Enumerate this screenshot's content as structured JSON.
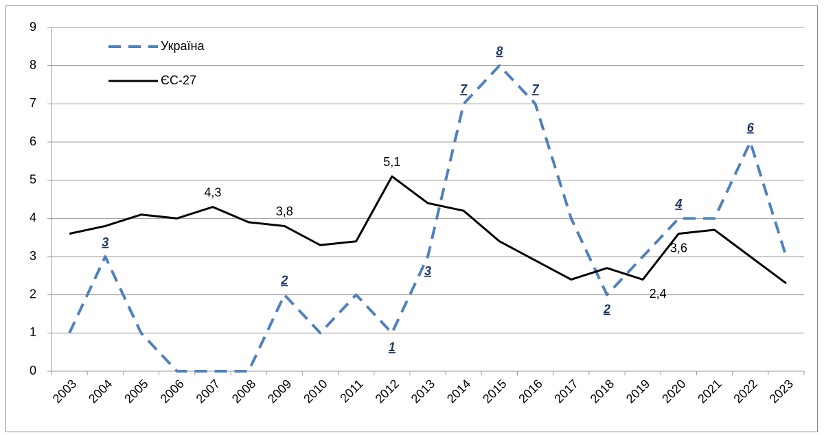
{
  "chart_data": {
    "type": "line",
    "categories": [
      "2003",
      "2004",
      "2005",
      "2006",
      "2007",
      "2008",
      "2009",
      "2010",
      "2011",
      "2012",
      "2013",
      "2014",
      "2015",
      "2016",
      "2017",
      "2018",
      "2019",
      "2020",
      "2021",
      "2022",
      "2023"
    ],
    "series": [
      {
        "name": "Україна",
        "color": "#4f81bd",
        "dashed": true,
        "values": [
          1,
          3,
          1,
          0,
          0,
          0,
          2,
          1,
          2,
          1,
          3,
          7,
          8,
          7,
          4,
          2,
          3,
          4,
          4,
          6,
          3
        ],
        "value_labels": [
          null,
          "3",
          null,
          null,
          null,
          null,
          "2",
          null,
          null,
          "1",
          "3",
          "7",
          "8",
          "7",
          null,
          "2",
          null,
          "4",
          null,
          "6",
          null
        ]
      },
      {
        "name": "ЄС-27",
        "color": "#000000",
        "dashed": false,
        "values": [
          3.6,
          3.8,
          4.1,
          4.0,
          4.3,
          3.9,
          3.8,
          3.3,
          3.4,
          5.1,
          4.4,
          4.2,
          3.4,
          2.9,
          2.4,
          2.7,
          2.4,
          3.6,
          3.7,
          3.0,
          2.3
        ],
        "value_labels": [
          null,
          null,
          null,
          null,
          "4,3",
          null,
          "3,8",
          null,
          null,
          "5,1",
          null,
          null,
          null,
          null,
          null,
          null,
          "2,4",
          "3,6",
          null,
          null,
          null
        ]
      }
    ],
    "ylim": [
      0,
      9
    ],
    "yticks": [
      0,
      1,
      2,
      3,
      4,
      5,
      6,
      7,
      8,
      9
    ],
    "grid": true,
    "legend": "top-left"
  }
}
